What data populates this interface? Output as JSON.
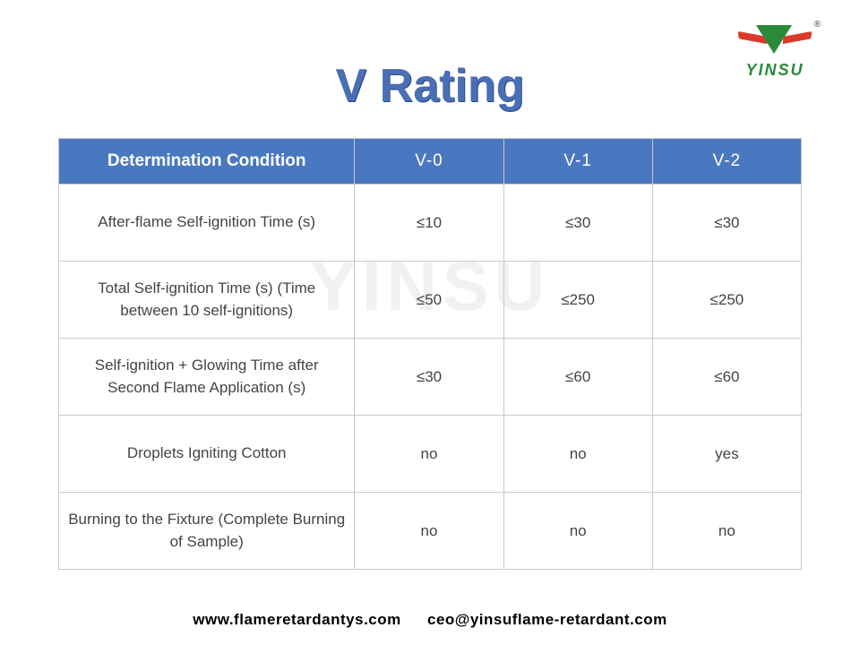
{
  "brand": {
    "name": "YINSU",
    "reg": "®",
    "logo_colors": {
      "v": "#2a8a3a",
      "swoosh": "#d93a2b"
    }
  },
  "title": "V Rating",
  "title_color": "#4a6fb5",
  "watermark": "YINSU",
  "table": {
    "header_bg": "#4a78c0",
    "header_fg": "#ffffff",
    "border_color": "#c9c9c9",
    "columns": [
      "Determination Condition",
      "V-0",
      "V-1",
      "V-2"
    ],
    "rows": [
      {
        "condition": "After-flame Self-ignition Time (s)",
        "v0": "≤10",
        "v1": "≤30",
        "v2": "≤30"
      },
      {
        "condition": "Total Self-ignition Time (s) (Time between 10 self-ignitions)",
        "v0": "≤50",
        "v1": "≤250",
        "v2": "≤250"
      },
      {
        "condition": "Self-ignition + Glowing Time after Second Flame Application (s)",
        "v0": "≤30",
        "v1": "≤60",
        "v2": "≤60"
      },
      {
        "condition": "Droplets Igniting Cotton",
        "v0": "no",
        "v1": "no",
        "v2": "yes"
      },
      {
        "condition": "Burning to the Fixture (Complete Burning of Sample)",
        "v0": "no",
        "v1": "no",
        "v2": "no"
      }
    ]
  },
  "footer": {
    "website": "www.flameretardantys.com",
    "email": "ceo@yinsuflame-retardant.com"
  }
}
